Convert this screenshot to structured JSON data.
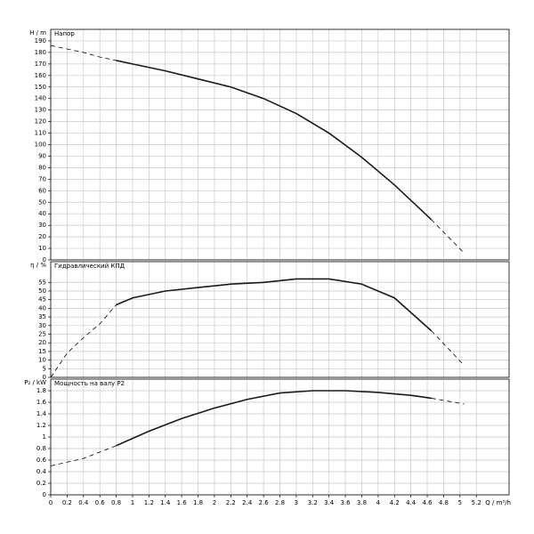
{
  "chart_data": [
    {
      "type": "line",
      "title": "Напор",
      "ylabel": "H / m",
      "xlim": [
        0,
        5.6
      ],
      "ylim": [
        0,
        200
      ],
      "grid": true,
      "yticks": [
        0,
        10,
        20,
        30,
        40,
        50,
        60,
        70,
        80,
        90,
        100,
        110,
        120,
        130,
        140,
        150,
        160,
        170,
        180,
        190
      ],
      "series": [
        {
          "style": "dashed",
          "color": "#000000",
          "x": [
            0,
            0.2,
            0.4,
            0.6,
            0.8
          ],
          "values": [
            186,
            183,
            180,
            176,
            173
          ]
        },
        {
          "style": "solid",
          "color": "#1a1a1a",
          "x": [
            0.8,
            1.0,
            1.4,
            1.8,
            2.2,
            2.6,
            3.0,
            3.4,
            3.8,
            4.2,
            4.65
          ],
          "values": [
            173,
            170,
            164,
            157,
            150,
            140,
            127,
            110,
            89,
            65,
            35
          ]
        },
        {
          "style": "dashed",
          "color": "#000000",
          "x": [
            4.65,
            5.05
          ],
          "values": [
            35,
            6
          ]
        }
      ]
    },
    {
      "type": "line",
      "title": "Гидравлический КПД",
      "ylabel": "η / %",
      "xlim": [
        0,
        5.6
      ],
      "ylim": [
        0,
        67
      ],
      "grid": true,
      "yticks": [
        0,
        5,
        10,
        15,
        20,
        25,
        30,
        35,
        40,
        45,
        50,
        55
      ],
      "series": [
        {
          "style": "dashed",
          "color": "#000000",
          "x": [
            0,
            0.2,
            0.4,
            0.6,
            0.8
          ],
          "values": [
            0,
            14,
            23,
            31,
            42
          ]
        },
        {
          "style": "solid",
          "color": "#1a1a1a",
          "x": [
            0.8,
            1.0,
            1.4,
            1.8,
            2.2,
            2.6,
            3.0,
            3.4,
            3.8,
            4.2,
            4.65
          ],
          "values": [
            42,
            46,
            50,
            52,
            54,
            55,
            57,
            57,
            54,
            46,
            27
          ]
        },
        {
          "style": "dashed",
          "color": "#000000",
          "x": [
            4.65,
            5.05
          ],
          "values": [
            27,
            7
          ]
        }
      ]
    },
    {
      "type": "line",
      "title": "Мощность на валу P2",
      "ylabel": "P₂ / kW",
      "xlabel": "Q / m³/h",
      "xlim": [
        0,
        5.6
      ],
      "ylim": [
        0,
        2
      ],
      "grid": true,
      "xticks": [
        0,
        0.2,
        0.4,
        0.6,
        0.8,
        1,
        1.2,
        1.4,
        1.6,
        1.8,
        2,
        2.2,
        2.4,
        2.6,
        2.8,
        3,
        3.2,
        3.4,
        3.6,
        3.8,
        4,
        4.2,
        4.4,
        4.6,
        4.8,
        5,
        5.2
      ],
      "yticks": [
        0,
        0.2,
        0.4,
        0.6,
        0.8,
        1,
        1.2,
        1.4,
        1.6,
        1.8
      ],
      "series": [
        {
          "style": "dashed",
          "color": "#000000",
          "x": [
            0,
            0.4,
            0.8
          ],
          "values": [
            0.5,
            0.63,
            0.85
          ]
        },
        {
          "style": "solid",
          "color": "#1a1a1a",
          "x": [
            0.8,
            1.2,
            1.6,
            2.0,
            2.4,
            2.8,
            3.2,
            3.6,
            4.0,
            4.4,
            4.65
          ],
          "values": [
            0.85,
            1.1,
            1.32,
            1.5,
            1.65,
            1.76,
            1.8,
            1.8,
            1.77,
            1.72,
            1.67
          ]
        },
        {
          "style": "dashed",
          "color": "#000000",
          "x": [
            4.65,
            5.05
          ],
          "values": [
            1.67,
            1.57
          ]
        }
      ]
    }
  ]
}
